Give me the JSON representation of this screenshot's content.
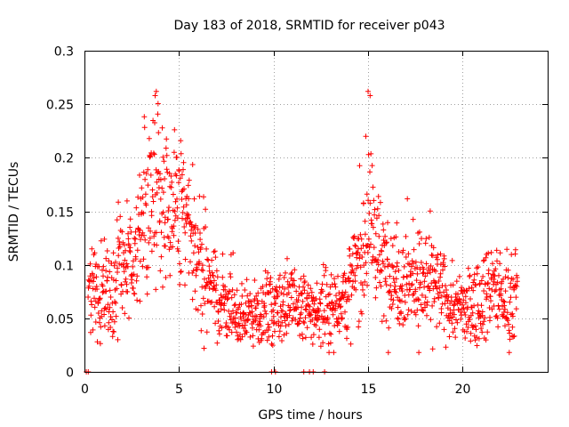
{
  "chart_data": {
    "type": "scatter",
    "title": "Day 183 of 2018, SRMTID for receiver p043",
    "xlabel": "GPS time / hours",
    "ylabel": "SRMTID / TECUs",
    "xlim": [
      0,
      24.5
    ],
    "ylim": [
      0,
      0.3
    ],
    "xticks": [
      0,
      5,
      10,
      15,
      20
    ],
    "xtick_labels": [
      "0",
      "5",
      "10",
      "15",
      "20"
    ],
    "yticks": [
      0,
      0.05,
      0.1,
      0.15,
      0.2,
      0.25,
      0.3
    ],
    "ytick_labels": [
      "0",
      "0.05",
      "0.1",
      "0.15",
      "0.2",
      "0.25",
      "0.3"
    ],
    "grid": true,
    "marker": "+",
    "color": "#ff0000",
    "series": [
      {
        "name": "SRMTID",
        "x_start": 0.2,
        "x_end": 22.9,
        "trend_keypoints": [
          [
            0.2,
            0.08
          ],
          [
            1.0,
            0.07
          ],
          [
            2.0,
            0.09
          ],
          [
            3.0,
            0.13
          ],
          [
            3.8,
            0.18
          ],
          [
            4.5,
            0.16
          ],
          [
            5.3,
            0.14
          ],
          [
            6.0,
            0.11
          ],
          [
            7.0,
            0.07
          ],
          [
            8.0,
            0.05
          ],
          [
            9.0,
            0.055
          ],
          [
            10.0,
            0.06
          ],
          [
            11.0,
            0.065
          ],
          [
            12.0,
            0.055
          ],
          [
            13.0,
            0.06
          ],
          [
            14.0,
            0.075
          ],
          [
            14.8,
            0.12
          ],
          [
            15.1,
            0.15
          ],
          [
            15.6,
            0.1
          ],
          [
            16.5,
            0.09
          ],
          [
            17.5,
            0.085
          ],
          [
            18.5,
            0.08
          ],
          [
            19.5,
            0.06
          ],
          [
            20.5,
            0.06
          ],
          [
            21.5,
            0.08
          ],
          [
            22.3,
            0.065
          ],
          [
            22.9,
            0.07
          ]
        ],
        "peaks": [
          {
            "x": 3.8,
            "y": 0.262
          },
          {
            "x": 15.0,
            "y": 0.262
          }
        ],
        "zero_points_x": [
          0.1,
          0.2,
          9.9,
          10.1,
          11.6,
          11.9,
          12.1,
          12.7
        ]
      }
    ]
  }
}
